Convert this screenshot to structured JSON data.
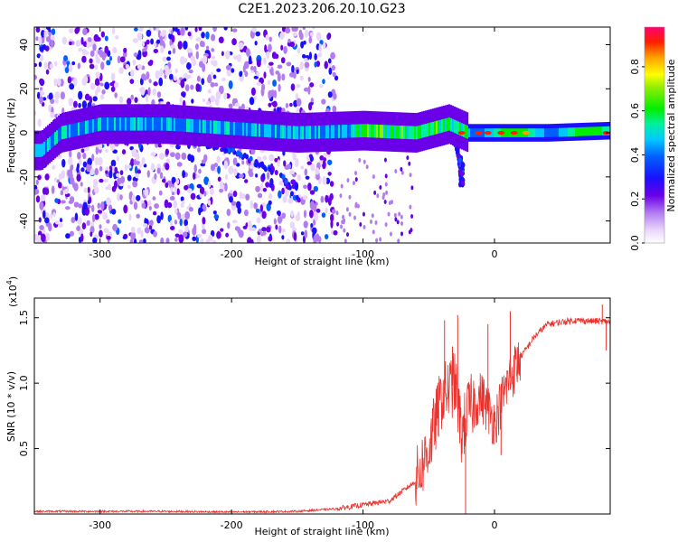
{
  "title": "C2E1.2023.206.20.10.G23",
  "chart_data": [
    {
      "type": "heatmap",
      "name": "spectrogram",
      "xlabel": "Height of straight line (km)",
      "ylabel": "Frequency (Hz)",
      "xlim": [
        -350,
        88
      ],
      "ylim": [
        -50,
        48
      ],
      "xticks": [
        -300,
        -200,
        -100,
        0
      ],
      "yticks": [
        -40,
        -20,
        0,
        20,
        40
      ],
      "ridge": [
        {
          "x": -345,
          "y": -8
        },
        {
          "x": -330,
          "y": 0
        },
        {
          "x": -300,
          "y": 4
        },
        {
          "x": -250,
          "y": 4
        },
        {
          "x": -200,
          "y": 2
        },
        {
          "x": -150,
          "y": 0
        },
        {
          "x": -100,
          "y": 1
        },
        {
          "x": -60,
          "y": 0
        },
        {
          "x": -35,
          "y": 4
        },
        {
          "x": -20,
          "y": 0
        },
        {
          "x": 0,
          "y": 0
        },
        {
          "x": 40,
          "y": 0
        },
        {
          "x": 88,
          "y": 1
        }
      ],
      "branches": [
        {
          "points": [
            {
              "x": -230,
              "y": -4
            },
            {
              "x": -200,
              "y": -8
            },
            {
              "x": -180,
              "y": -14
            },
            {
              "x": -160,
              "y": -20
            },
            {
              "x": -150,
              "y": -30
            }
          ]
        },
        {
          "points": [
            {
              "x": -30,
              "y": -5
            },
            {
              "x": -25,
              "y": -15
            },
            {
              "x": -25,
              "y": -24
            }
          ]
        }
      ],
      "noise_region": {
        "x_start": -350,
        "x_end": -120
      },
      "colorbar": {
        "label": "Normalized spectral amplitude",
        "ticks": [
          "0.0",
          "0.2",
          "0.4",
          "0.6",
          "0.8"
        ],
        "tick_values": [
          0.0,
          0.2,
          0.4,
          0.6,
          0.8
        ],
        "range": [
          0.0,
          0.98
        ],
        "colormap": "rainbow"
      }
    },
    {
      "type": "line",
      "name": "snr",
      "xlabel": "Height of straight line (km)",
      "ylabel": "SNR (10 * v/v)",
      "scale_label": "(x10",
      "scale_exponent": "4",
      "scale_close": ")",
      "xlim": [
        -350,
        88
      ],
      "ylim": [
        0,
        1.65
      ],
      "xticks": [
        -300,
        -200,
        -100,
        0
      ],
      "yticks": [
        0.5,
        1.0,
        1.5
      ],
      "ytick_labels": [
        "0.5",
        "1.0",
        "1.5"
      ],
      "color": "#e8332e",
      "series_points": [
        {
          "x": -350,
          "y": 0.02
        },
        {
          "x": -300,
          "y": 0.02
        },
        {
          "x": -250,
          "y": 0.02
        },
        {
          "x": -200,
          "y": 0.015
        },
        {
          "x": -150,
          "y": 0.02
        },
        {
          "x": -120,
          "y": 0.04
        },
        {
          "x": -100,
          "y": 0.07
        },
        {
          "x": -80,
          "y": 0.1
        },
        {
          "x": -60,
          "y": 0.25
        },
        {
          "x": -50,
          "y": 0.5
        },
        {
          "x": -40,
          "y": 0.9
        },
        {
          "x": -30,
          "y": 1.0
        },
        {
          "x": -25,
          "y": 0.6
        },
        {
          "x": -20,
          "y": 0.8
        },
        {
          "x": -10,
          "y": 0.9
        },
        {
          "x": 0,
          "y": 0.7
        },
        {
          "x": 10,
          "y": 1.0
        },
        {
          "x": 20,
          "y": 1.2
        },
        {
          "x": 30,
          "y": 1.35
        },
        {
          "x": 40,
          "y": 1.45
        },
        {
          "x": 60,
          "y": 1.48
        },
        {
          "x": 88,
          "y": 1.47
        }
      ],
      "spikes": [
        {
          "x": -38,
          "y": 1.48
        },
        {
          "x": -32,
          "y": 1.28
        },
        {
          "x": -28,
          "y": 1.52
        },
        {
          "x": -22,
          "y": 0.0
        },
        {
          "x": -5,
          "y": 1.45
        },
        {
          "x": 5,
          "y": 0.45
        },
        {
          "x": 12,
          "y": 1.55
        },
        {
          "x": 82,
          "y": 1.6
        },
        {
          "x": 85,
          "y": 1.25
        }
      ]
    }
  ]
}
